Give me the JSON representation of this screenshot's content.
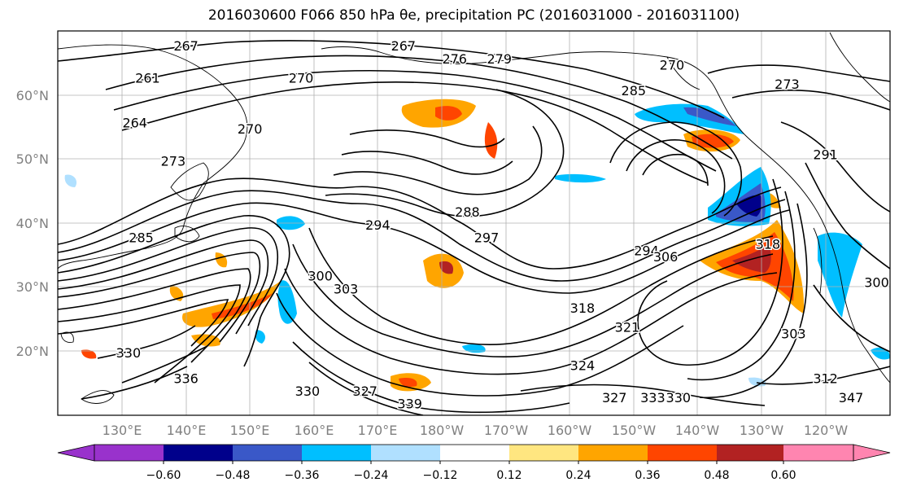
{
  "title": "2016030600 F066 850 hPa θe, precipitation PC (2016031000 - 2016031100)",
  "map": {
    "lon_labels": [
      "130°E",
      "140°E",
      "150°E",
      "160°E",
      "170°E",
      "180°W",
      "170°W",
      "160°W",
      "150°W",
      "140°W",
      "130°W",
      "120°W"
    ],
    "lat_labels": [
      "60°N",
      "50°N",
      "40°N",
      "30°N",
      "20°N"
    ],
    "contour_labels": [
      {
        "text": "267",
        "lon": 140,
        "lat": 67
      },
      {
        "text": "267",
        "lon": 174,
        "lat": 67
      },
      {
        "text": "276",
        "lon": -178,
        "lat": 65
      },
      {
        "text": "279",
        "lon": -171,
        "lat": 65
      },
      {
        "text": "270",
        "lon": -144,
        "lat": 64
      },
      {
        "text": "273",
        "lon": -126,
        "lat": 61
      },
      {
        "text": "270",
        "lon": 158,
        "lat": 62
      },
      {
        "text": "261",
        "lon": 134,
        "lat": 62
      },
      {
        "text": "264",
        "lon": 132,
        "lat": 55
      },
      {
        "text": "270",
        "lon": 150,
        "lat": 54
      },
      {
        "text": "273",
        "lon": 138,
        "lat": 49
      },
      {
        "text": "285",
        "lon": -150,
        "lat": 60
      },
      {
        "text": "288",
        "lon": -176,
        "lat": 41
      },
      {
        "text": "294",
        "lon": 170,
        "lat": 39
      },
      {
        "text": "297",
        "lon": -173,
        "lat": 37
      },
      {
        "text": "300",
        "lon": 161,
        "lat": 31
      },
      {
        "text": "303",
        "lon": 165,
        "lat": 29
      },
      {
        "text": "294",
        "lon": -148,
        "lat": 35
      },
      {
        "text": "306",
        "lon": -145,
        "lat": 34
      },
      {
        "text": "318",
        "lon": -129,
        "lat": 36
      },
      {
        "text": "291",
        "lon": -120,
        "lat": 50
      },
      {
        "text": "300",
        "lon": -112,
        "lat": 30
      },
      {
        "text": "303",
        "lon": -125,
        "lat": 22
      },
      {
        "text": "312",
        "lon": -120,
        "lat": 15
      },
      {
        "text": "318",
        "lon": -158,
        "lat": 26
      },
      {
        "text": "321",
        "lon": -151,
        "lat": 23
      },
      {
        "text": "285",
        "lon": 133,
        "lat": 37
      },
      {
        "text": "330",
        "lon": 131,
        "lat": 19
      },
      {
        "text": "336",
        "lon": 140,
        "lat": 15
      },
      {
        "text": "330",
        "lon": 159,
        "lat": 13
      },
      {
        "text": "327",
        "lon": 168,
        "lat": 13
      },
      {
        "text": "339",
        "lon": 175,
        "lat": 11
      },
      {
        "text": "324",
        "lon": -158,
        "lat": 17
      },
      {
        "text": "327",
        "lon": -153,
        "lat": 12
      },
      {
        "text": "333",
        "lon": -147,
        "lat": 12
      },
      {
        "text": "330",
        "lon": -143,
        "lat": 12
      },
      {
        "text": "347",
        "lon": -116,
        "lat": 12
      }
    ]
  },
  "colorbar": {
    "labels": [
      "−0.60",
      "−0.48",
      "−0.36",
      "−0.24",
      "−0.12",
      "0.12",
      "0.24",
      "0.36",
      "0.48",
      "0.60"
    ],
    "colors": [
      "#9932cc",
      "#00008b",
      "#3a58c8",
      "#00bfff",
      "#b0e0ff",
      "#ffffff",
      "#ffe680",
      "#ffa500",
      "#ff4500",
      "#b22222",
      "#ff85b0"
    ]
  }
}
